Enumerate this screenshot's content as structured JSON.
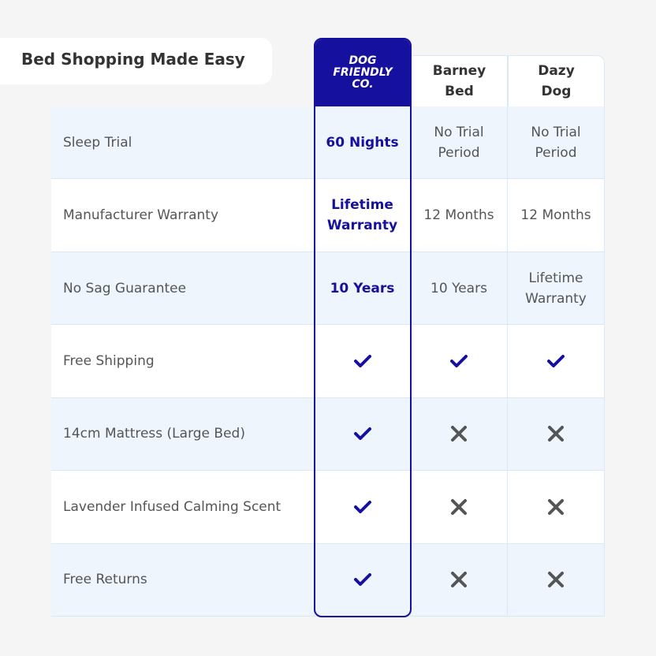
{
  "header": {
    "title": "Bed Shopping Made Easy"
  },
  "table": {
    "columns": [
      {
        "logo_lines": [
          "DOG",
          "FRIENDLY",
          "CO."
        ]
      },
      {
        "name": "Barney Bed"
      },
      {
        "name": "Dazy Dog"
      }
    ],
    "rows": [
      {
        "label": "Sleep Trial",
        "cells": [
          "60 Nights",
          "No Trial Period",
          "No Trial Period"
        ]
      },
      {
        "label": "Manufacturer Warranty",
        "cells": [
          "Lifetime Warranty",
          "12 Months",
          "12 Months"
        ]
      },
      {
        "label": "No Sag Guarantee",
        "cells": [
          "10 Years",
          "10 Years",
          "Lifetime Warranty"
        ]
      },
      {
        "label": "Free Shipping",
        "cells": [
          true,
          true,
          true
        ]
      },
      {
        "label": "14cm Mattress (Large Bed)",
        "cells": [
          true,
          false,
          false
        ]
      },
      {
        "label": "Lavender Infused Calming Scent",
        "cells": [
          true,
          false,
          false
        ]
      },
      {
        "label": "Free Returns",
        "cells": [
          true,
          false,
          false
        ]
      }
    ]
  }
}
